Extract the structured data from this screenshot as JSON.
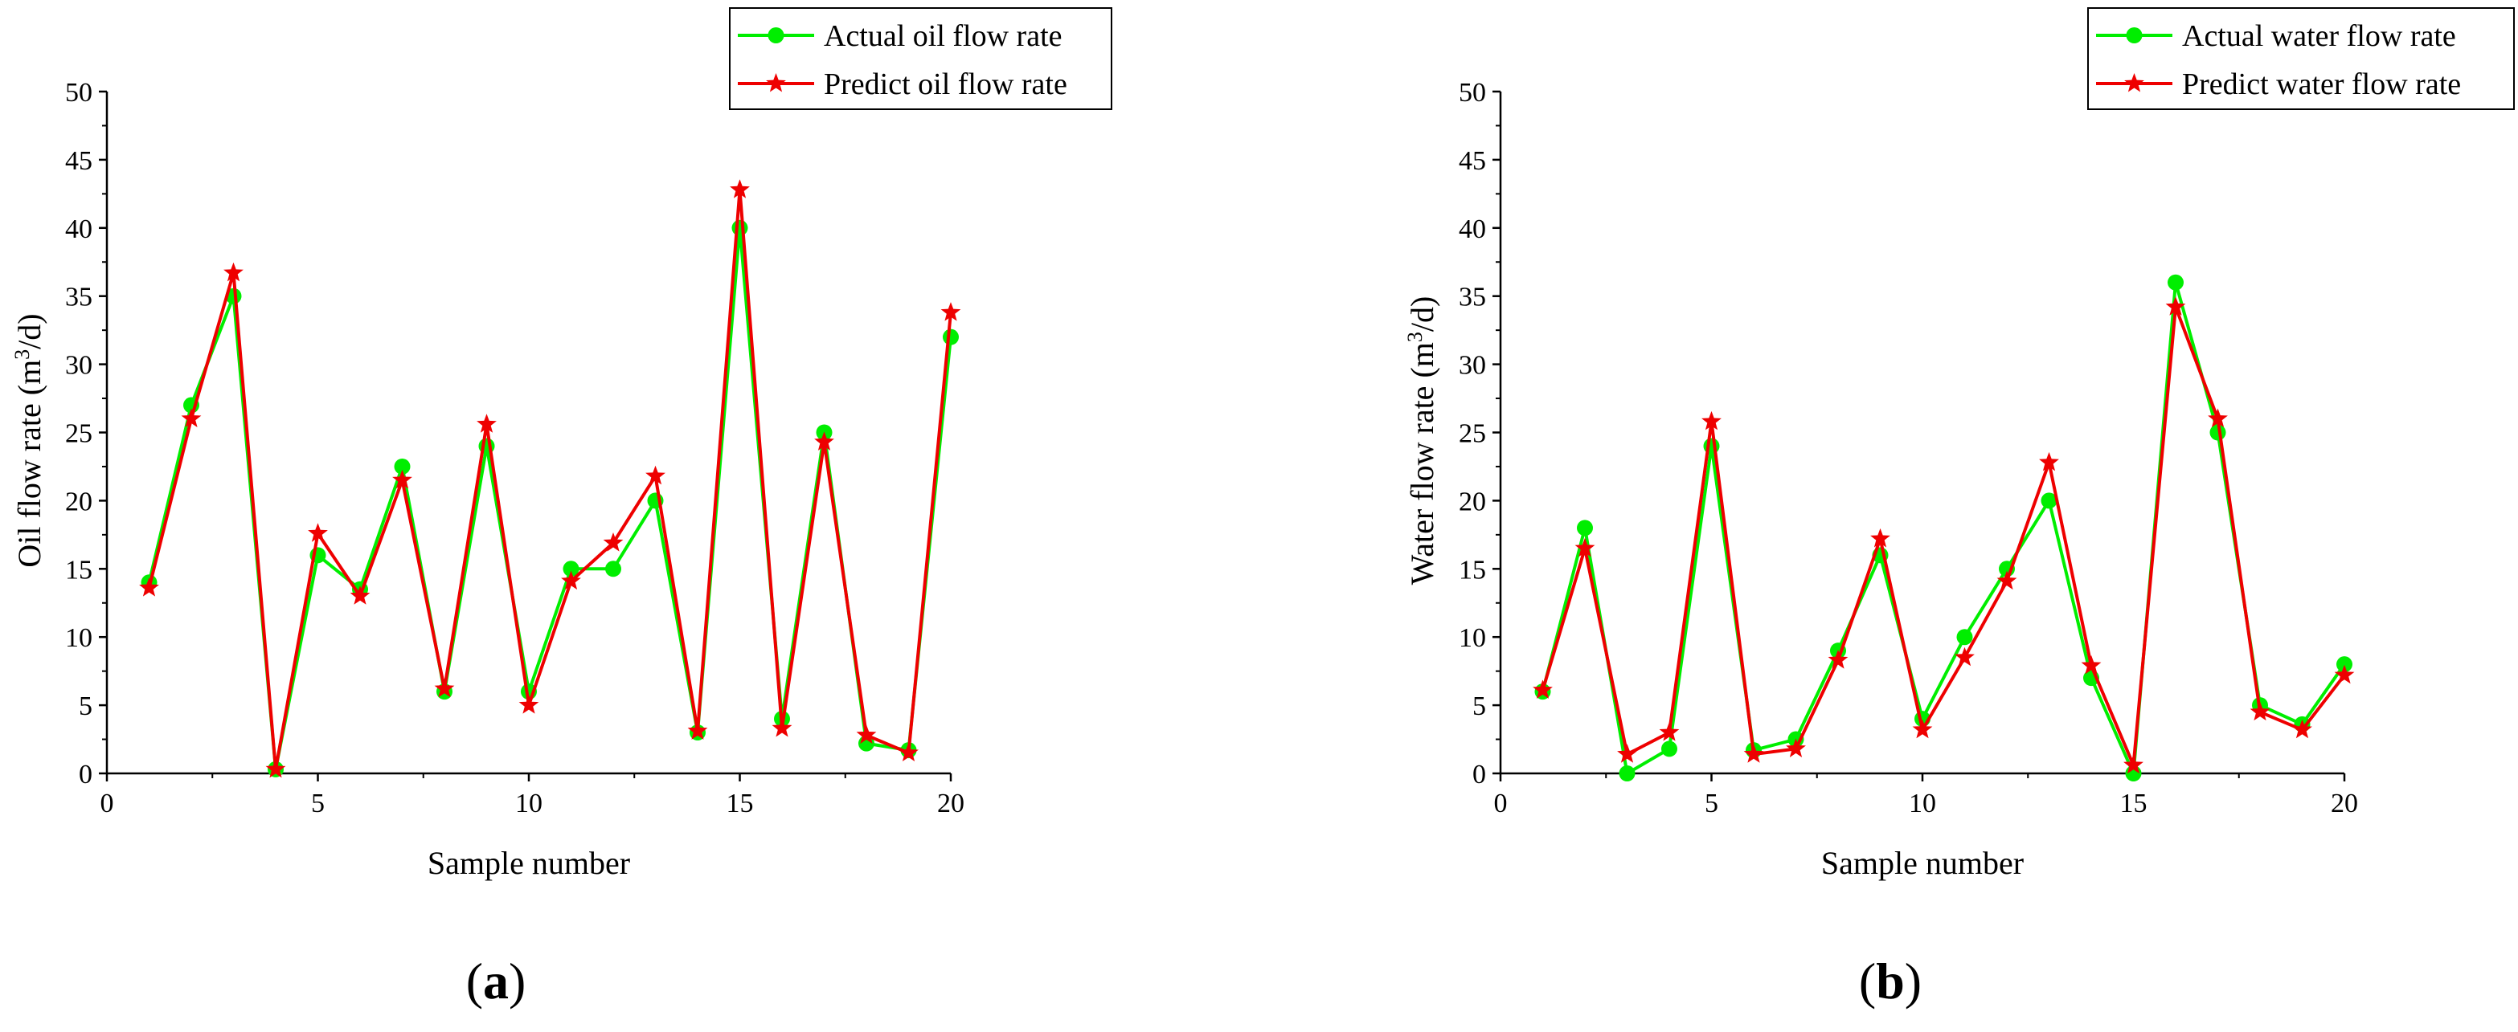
{
  "chart_data": [
    {
      "id": "a",
      "type": "line",
      "panel_label": "a",
      "xlabel": "Sample number",
      "ylabel": "Oil flow rate (m",
      "ylabel_sup": "3",
      "ylabel_suffix": "/d)",
      "xlim": [
        0,
        20
      ],
      "ylim": [
        0,
        50
      ],
      "xticks": [
        0,
        5,
        10,
        15,
        20
      ],
      "yticks": [
        0,
        5,
        10,
        15,
        20,
        25,
        30,
        35,
        40,
        45,
        50
      ],
      "grid": false,
      "legend_position": "top-right",
      "x": [
        1,
        2,
        3,
        4,
        5,
        6,
        7,
        8,
        9,
        10,
        11,
        12,
        13,
        14,
        15,
        16,
        17,
        18,
        19,
        20
      ],
      "series": [
        {
          "name": "Actual oil flow rate",
          "color": "#00ee00",
          "marker": "circle",
          "values": [
            14,
            27,
            35,
            0.3,
            16,
            13.5,
            22.5,
            6,
            24,
            6,
            15,
            15,
            20,
            3,
            40,
            4,
            25,
            2.2,
            1.7,
            32
          ]
        },
        {
          "name": "Predict oil flow rate",
          "color": "#ee0000",
          "marker": "star",
          "values": [
            13.6,
            26,
            36.7,
            0.3,
            17.6,
            13,
            21.5,
            6.2,
            25.6,
            5,
            14.1,
            16.9,
            21.8,
            3.1,
            42.8,
            3.3,
            24.3,
            2.8,
            1.5,
            33.8
          ]
        }
      ]
    },
    {
      "id": "b",
      "type": "line",
      "panel_label": "b",
      "xlabel": "Sample number",
      "ylabel": "Water flow rate (m",
      "ylabel_sup": "3",
      "ylabel_suffix": "/d)",
      "xlim": [
        0,
        20
      ],
      "ylim": [
        0,
        50
      ],
      "xticks": [
        0,
        5,
        10,
        15,
        20
      ],
      "yticks": [
        0,
        5,
        10,
        15,
        20,
        25,
        30,
        35,
        40,
        45,
        50
      ],
      "grid": false,
      "legend_position": "top-right",
      "x": [
        1,
        2,
        3,
        4,
        5,
        6,
        7,
        8,
        9,
        10,
        11,
        12,
        13,
        14,
        15,
        16,
        17,
        18,
        19,
        20
      ],
      "series": [
        {
          "name": "Actual water flow rate",
          "color": "#00ee00",
          "marker": "circle",
          "values": [
            6,
            18,
            0,
            1.8,
            24,
            1.7,
            2.5,
            9,
            16,
            4,
            10,
            15,
            20,
            7,
            0,
            36,
            25,
            5,
            3.6,
            8
          ]
        },
        {
          "name": "Predict water flow rate",
          "color": "#ee0000",
          "marker": "star",
          "values": [
            6.1,
            16.5,
            1.4,
            3,
            25.8,
            1.4,
            1.8,
            8.3,
            17.2,
            3.2,
            8.5,
            14.1,
            22.8,
            7.9,
            0.6,
            34.2,
            26,
            4.5,
            3.2,
            7.2
          ]
        }
      ]
    }
  ]
}
